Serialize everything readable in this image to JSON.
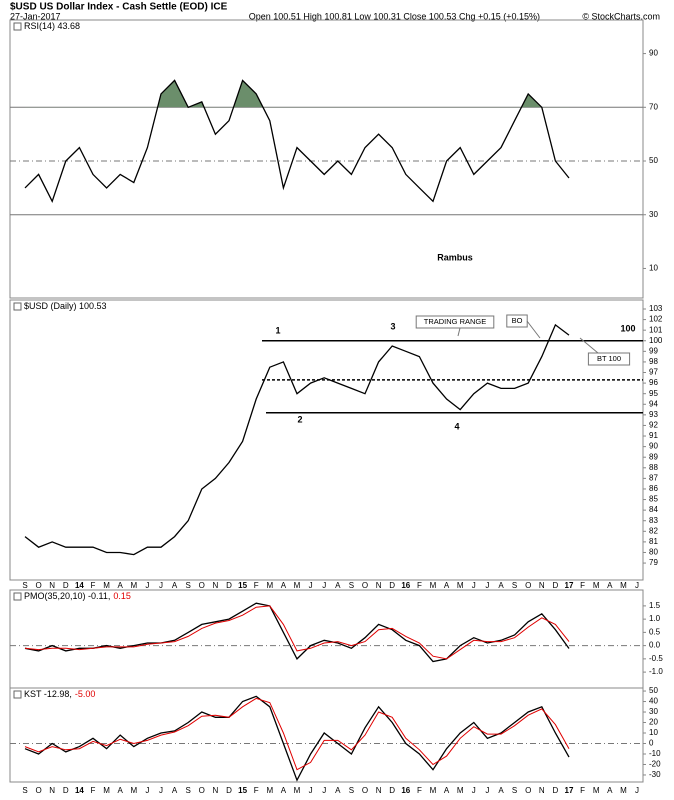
{
  "header": {
    "title": "$USD US Dollar Index - Cash Settle (EOD) ICE",
    "date": "27-Jan-2017",
    "quote": "Open 100.51 High 100.81 Low 100.31 Close 100.53 Chg +0.15 (+0.15%)",
    "source": "© StockCharts.com"
  },
  "chart_data": [
    {
      "type": "line",
      "series": [
        {
          "name": "RSI(14) 43.68",
          "color": "#000000",
          "values": [
            40,
            45,
            35,
            50,
            55,
            45,
            40,
            45,
            42,
            55,
            75,
            80,
            70,
            72,
            60,
            65,
            80,
            75,
            65,
            40,
            55,
            50,
            45,
            50,
            45,
            55,
            60,
            55,
            45,
            40,
            35,
            50,
            55,
            45,
            50,
            55,
            65,
            75,
            70,
            50,
            43.68,
            null,
            null,
            null,
            null,
            null
          ]
        }
      ],
      "ylim": [
        -1,
        102.5
      ],
      "yticks": [
        10,
        30,
        50,
        70,
        90
      ],
      "levels": [
        70,
        50,
        30
      ],
      "overbought": 70,
      "overbought_color": "#6b8e6b",
      "annotations": [
        "Rambus"
      ]
    },
    {
      "type": "line",
      "categories": [
        "S",
        "O",
        "N",
        "D",
        "14",
        "F",
        "M",
        "A",
        "M",
        "J",
        "J",
        "A",
        "S",
        "O",
        "N",
        "D",
        "15",
        "F",
        "M",
        "A",
        "M",
        "J",
        "J",
        "A",
        "S",
        "O",
        "N",
        "D",
        "16",
        "F",
        "M",
        "A",
        "M",
        "J",
        "J",
        "A",
        "S",
        "O",
        "N",
        "D",
        "17",
        "F",
        "M",
        "A",
        "M",
        "J"
      ],
      "series": [
        {
          "name": "$USD (Daily) 100.53",
          "color": "#000000",
          "values": [
            81.5,
            80.5,
            81,
            80.5,
            80.5,
            80.5,
            80,
            80,
            79.8,
            80.5,
            80.5,
            81.5,
            83,
            86,
            87,
            88.5,
            90.5,
            94.5,
            97.5,
            98,
            95,
            96,
            96.5,
            96,
            95.5,
            95,
            98,
            99.5,
            99,
            98.5,
            96,
            94.5,
            93.5,
            95,
            96,
            95.5,
            95.5,
            96,
            98.5,
            101.5,
            100.53,
            null,
            null,
            null,
            null,
            null
          ]
        }
      ],
      "ylim": [
        77.4,
        103.85
      ],
      "yticks": [
        79,
        80,
        81,
        82,
        83,
        84,
        85,
        86,
        87,
        88,
        89,
        90,
        91,
        92,
        93,
        94,
        95,
        96,
        97,
        98,
        99,
        100,
        101,
        102,
        103
      ],
      "levels": [
        100,
        96.3,
        93.2
      ],
      "annotations": [
        "1",
        "2",
        "3",
        "4",
        "TRADING RANGE",
        "BO",
        "BT 100",
        "100"
      ]
    },
    {
      "type": "line",
      "series": [
        {
          "name": "PMO(35,20,10) -0.11,",
          "color": "#000000",
          "values": [
            -0.1,
            -0.2,
            0.0,
            -0.2,
            -0.1,
            -0.1,
            0.0,
            -0.1,
            0.0,
            0.1,
            0.1,
            0.2,
            0.5,
            0.8,
            0.9,
            1.0,
            1.3,
            1.6,
            1.5,
            0.5,
            -0.5,
            0.0,
            0.2,
            0.1,
            -0.1,
            0.3,
            0.8,
            0.6,
            0.2,
            0.0,
            -0.6,
            -0.5,
            0.0,
            0.3,
            0.1,
            0.2,
            0.4,
            0.9,
            1.2,
            0.6,
            -0.11,
            null,
            null,
            null,
            null,
            null
          ]
        },
        {
          "name": "0.15",
          "color": "#e00000",
          "values": [
            -0.1,
            -0.15,
            -0.1,
            -0.1,
            -0.15,
            -0.1,
            -0.05,
            -0.05,
            -0.05,
            0.05,
            0.1,
            0.15,
            0.35,
            0.65,
            0.85,
            0.95,
            1.15,
            1.45,
            1.5,
            0.8,
            -0.2,
            -0.1,
            0.1,
            0.15,
            0.0,
            0.15,
            0.6,
            0.65,
            0.35,
            0.1,
            -0.4,
            -0.5,
            -0.15,
            0.2,
            0.15,
            0.15,
            0.3,
            0.7,
            1.05,
            0.8,
            0.15,
            null,
            null,
            null,
            null,
            null
          ]
        }
      ],
      "ylim": [
        -1.6,
        2.1
      ],
      "yticks": [
        {
          "value": 1.5,
          "label": "1.5"
        },
        {
          "value": 1,
          "label": "1.0"
        },
        {
          "value": 0.5,
          "label": "0.5"
        },
        {
          "value": 0,
          "label": "0.0"
        },
        {
          "value": -0.5,
          "label": "-0.5"
        },
        {
          "value": -1,
          "label": "-1.0"
        }
      ],
      "levels": [
        0
      ]
    },
    {
      "type": "line",
      "categories": [
        "S",
        "O",
        "N",
        "D",
        "14",
        "F",
        "M",
        "A",
        "M",
        "J",
        "J",
        "A",
        "S",
        "O",
        "N",
        "D",
        "15",
        "F",
        "M",
        "A",
        "M",
        "J",
        "J",
        "A",
        "S",
        "O",
        "N",
        "D",
        "16",
        "F",
        "M",
        "A",
        "M",
        "J",
        "J",
        "A",
        "S",
        "O",
        "N",
        "D",
        "17",
        "F",
        "M",
        "A",
        "M",
        "J"
      ],
      "series": [
        {
          "name": "KST -12.98,",
          "color": "#000000",
          "values": [
            -5,
            -10,
            0,
            -8,
            -3,
            5,
            -5,
            8,
            -3,
            5,
            10,
            12,
            20,
            30,
            25,
            25,
            40,
            45,
            35,
            0,
            -35,
            -10,
            10,
            0,
            -10,
            15,
            35,
            20,
            0,
            -10,
            -25,
            -5,
            10,
            20,
            5,
            10,
            20,
            30,
            35,
            10,
            -12.98,
            null,
            null,
            null,
            null,
            null
          ]
        },
        {
          "name": "-5.00",
          "color": "#e00000",
          "values": [
            -3,
            -8,
            -3,
            -6,
            -5,
            2,
            -2,
            4,
            0,
            3,
            8,
            11,
            17,
            26,
            27,
            25,
            35,
            43,
            39,
            10,
            -25,
            -18,
            3,
            3,
            -6,
            8,
            30,
            25,
            5,
            -6,
            -20,
            -12,
            5,
            16,
            9,
            9,
            17,
            27,
            33,
            18,
            -5,
            null,
            null,
            null,
            null,
            null
          ]
        }
      ],
      "ylim": [
        -36.7,
        52.9
      ],
      "yticks": [
        50,
        40,
        30,
        20,
        10,
        0,
        -10,
        -20,
        -30
      ],
      "levels": [
        0
      ]
    }
  ]
}
